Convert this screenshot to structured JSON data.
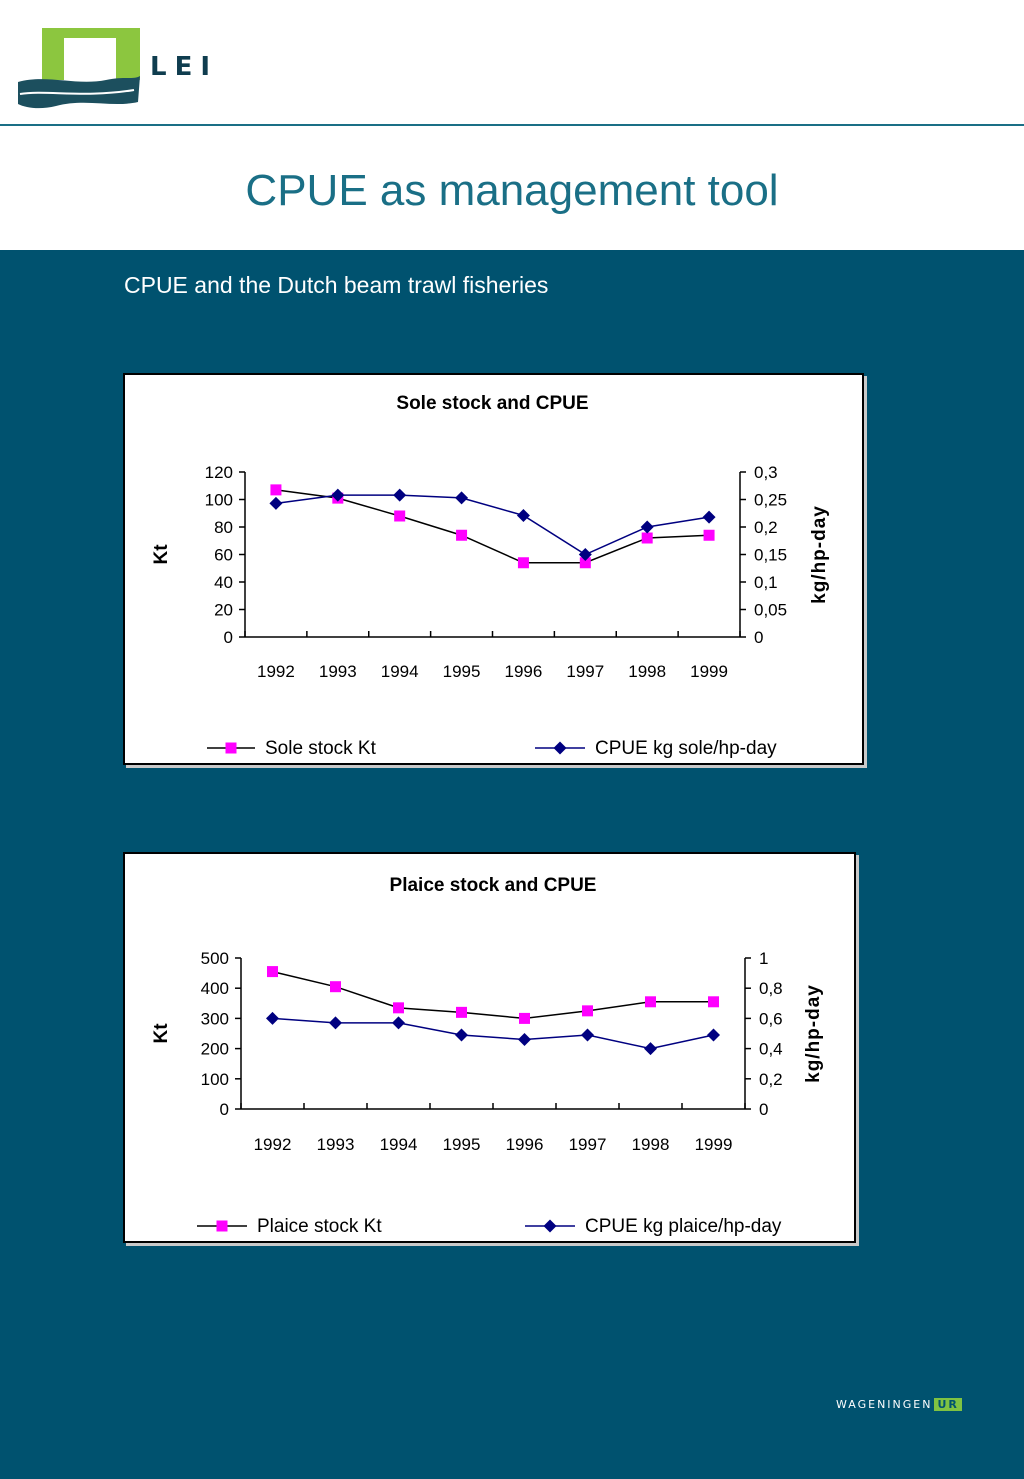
{
  "header": {
    "logo_text": "LEI",
    "title": "CPUE as management tool"
  },
  "subtitle": "CPUE and the Dutch beam trawl fisheries",
  "footer": {
    "brand": "WAGENINGEN",
    "brand_suffix": "UR"
  },
  "colors": {
    "stock": "#ff00ff",
    "cpue": "#000080",
    "background": "#00526f",
    "title": "#1a6f86"
  },
  "chart_data": [
    {
      "type": "line",
      "title": "Sole stock and CPUE",
      "categories": [
        "1992",
        "1993",
        "1994",
        "1995",
        "1996",
        "1997",
        "1998",
        "1999"
      ],
      "ylabel": "Kt",
      "ylabel_right": "kg/hp-day",
      "ylim": [
        0,
        120
      ],
      "yticks": [
        "0",
        "20",
        "40",
        "60",
        "80",
        "100",
        "120"
      ],
      "ylim_right": [
        0,
        0.3
      ],
      "yticks_right": [
        "0",
        "0,05",
        "0,1",
        "0,15",
        "0,2",
        "0,25",
        "0,3"
      ],
      "legend_position": "bottom",
      "series": [
        {
          "name": "Sole stock Kt",
          "axis": "left",
          "marker": "square",
          "color": "#ff00ff",
          "values": [
            107,
            101,
            88,
            74,
            54,
            54,
            72,
            74
          ]
        },
        {
          "name": "CPUE kg sole/hp-day",
          "axis": "right",
          "marker": "diamond",
          "color": "#000080",
          "values": [
            0.243,
            0.258,
            0.258,
            0.253,
            0.221,
            0.15,
            0.2,
            0.218
          ]
        }
      ]
    },
    {
      "type": "line",
      "title": "Plaice stock and CPUE",
      "categories": [
        "1992",
        "1993",
        "1994",
        "1995",
        "1996",
        "1997",
        "1998",
        "1999"
      ],
      "ylabel": "Kt",
      "ylabel_right": "kg/hp-day",
      "ylim": [
        0,
        500
      ],
      "yticks": [
        "0",
        "100",
        "200",
        "300",
        "400",
        "500"
      ],
      "ylim_right": [
        0,
        1
      ],
      "yticks_right": [
        "0",
        "0,2",
        "0,4",
        "0,6",
        "0,8",
        "1"
      ],
      "legend_position": "bottom",
      "series": [
        {
          "name": "Plaice stock  Kt",
          "axis": "left",
          "marker": "square",
          "color": "#ff00ff",
          "values": [
            455,
            405,
            335,
            320,
            300,
            325,
            355,
            355
          ]
        },
        {
          "name": "CPUE kg plaice/hp-day",
          "axis": "right",
          "marker": "diamond",
          "color": "#000080",
          "values": [
            0.6,
            0.57,
            0.57,
            0.49,
            0.46,
            0.49,
            0.4,
            0.49
          ]
        }
      ]
    }
  ]
}
